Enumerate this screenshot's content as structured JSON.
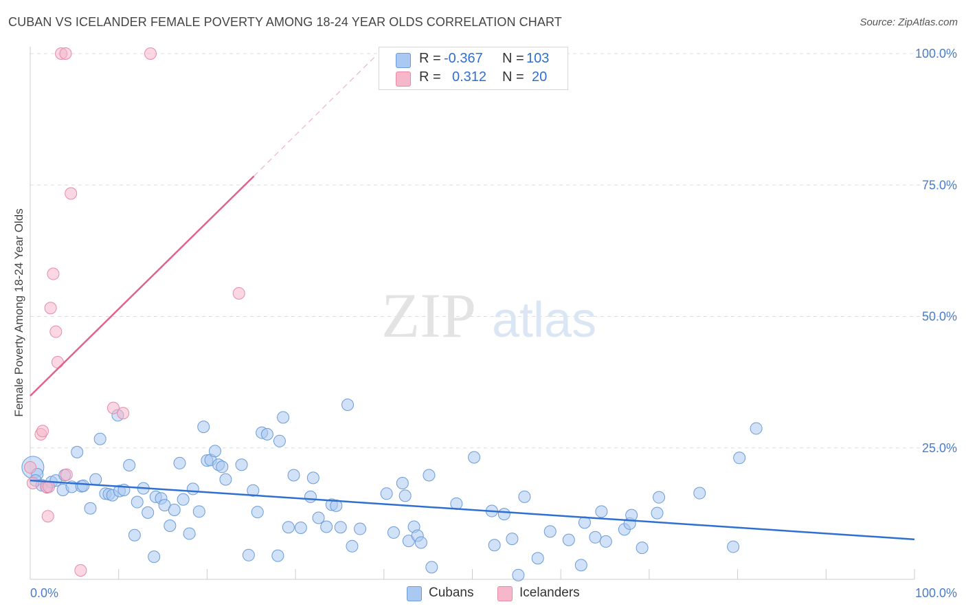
{
  "header": {
    "title": "CUBAN VS ICELANDER FEMALE POVERTY AMONG 18-24 YEAR OLDS CORRELATION CHART",
    "source": "Source: ZipAtlas.com"
  },
  "watermark": {
    "zip": "ZIP",
    "atlas": "atlas"
  },
  "legend": {
    "rows": [
      {
        "r_label": "R =",
        "r_value": "-0.367",
        "n_label": "N =",
        "n_value": "103",
        "color": "#a9c8f2"
      },
      {
        "r_label": "R =",
        "r_value": "0.312",
        "n_label": "N =",
        "n_value": "20",
        "color": "#f6b7ca"
      }
    ]
  },
  "bottom_legend": [
    {
      "label": "Cubans",
      "color": "#a9c8f2"
    },
    {
      "label": "Icelanders",
      "color": "#f6b7ca"
    }
  ],
  "colors": {
    "cubans_fill": "#a9c8f2",
    "cubans_stroke": "#6a9bd8",
    "cubans_line": "#2e6fd0",
    "icelanders_fill": "#f6b7ca",
    "icelanders_stroke": "#e88aa7",
    "icelanders_line": "#e0628b",
    "tick_text": "#4a7cc9",
    "grid": "#dddddd"
  },
  "chart_data": {
    "type": "scatter",
    "title": "CUBAN VS ICELANDER FEMALE POVERTY AMONG 18-24 YEAR OLDS CORRELATION CHART",
    "xlabel": "",
    "ylabel": "Female Poverty Among 18-24 Year Olds",
    "xlim": [
      0,
      100
    ],
    "ylim": [
      0,
      100
    ],
    "x_tick_labels": [
      "0.0%",
      "100.0%"
    ],
    "y_ticks": [
      25,
      50,
      75,
      100
    ],
    "y_tick_labels": [
      "25.0%",
      "50.0%",
      "75.0%",
      "100.0%"
    ],
    "grid": true,
    "series": [
      {
        "name": "Cubans",
        "r": -0.367,
        "n": 103,
        "trend": {
          "x0": 0,
          "y0": 18.8,
          "x1": 100,
          "y1": 7.6
        },
        "points": [
          [
            0.3,
            21.3
          ],
          [
            0.8,
            20.0
          ],
          [
            0.6,
            18.8
          ],
          [
            1.3,
            17.9
          ],
          [
            1.9,
            17.5
          ],
          [
            2.4,
            18.5
          ],
          [
            2.9,
            18.8
          ],
          [
            3.7,
            17.0
          ],
          [
            3.9,
            19.8
          ],
          [
            4.7,
            17.6
          ],
          [
            5.3,
            24.2
          ],
          [
            5.8,
            17.7
          ],
          [
            6.0,
            17.8
          ],
          [
            6.8,
            13.5
          ],
          [
            7.4,
            19.0
          ],
          [
            7.9,
            26.7
          ],
          [
            8.5,
            16.3
          ],
          [
            8.9,
            16.2
          ],
          [
            9.3,
            16.0
          ],
          [
            9.9,
            31.2
          ],
          [
            10.1,
            16.8
          ],
          [
            10.6,
            17.0
          ],
          [
            11.2,
            21.7
          ],
          [
            11.8,
            8.4
          ],
          [
            12.1,
            14.7
          ],
          [
            12.8,
            17.3
          ],
          [
            13.3,
            12.7
          ],
          [
            14.0,
            4.3
          ],
          [
            14.2,
            15.7
          ],
          [
            14.8,
            15.4
          ],
          [
            15.2,
            14.1
          ],
          [
            15.8,
            10.2
          ],
          [
            16.3,
            13.2
          ],
          [
            16.9,
            22.1
          ],
          [
            17.3,
            15.2
          ],
          [
            18.0,
            8.7
          ],
          [
            18.4,
            17.2
          ],
          [
            19.1,
            12.9
          ],
          [
            19.6,
            29.0
          ],
          [
            20.0,
            22.6
          ],
          [
            20.4,
            22.7
          ],
          [
            20.9,
            24.4
          ],
          [
            21.3,
            21.8
          ],
          [
            21.7,
            21.4
          ],
          [
            22.1,
            19.0
          ],
          [
            23.9,
            21.8
          ],
          [
            24.7,
            4.6
          ],
          [
            25.2,
            16.9
          ],
          [
            25.7,
            12.8
          ],
          [
            26.2,
            27.9
          ],
          [
            26.8,
            27.6
          ],
          [
            28.0,
            4.5
          ],
          [
            28.2,
            26.3
          ],
          [
            28.6,
            30.8
          ],
          [
            29.2,
            9.9
          ],
          [
            29.8,
            19.8
          ],
          [
            30.6,
            9.8
          ],
          [
            31.7,
            15.7
          ],
          [
            32.0,
            19.3
          ],
          [
            32.6,
            11.7
          ],
          [
            33.5,
            10.0
          ],
          [
            34.1,
            14.2
          ],
          [
            34.6,
            14.0
          ],
          [
            35.1,
            9.9
          ],
          [
            35.9,
            33.2
          ],
          [
            36.4,
            6.3
          ],
          [
            37.3,
            9.6
          ],
          [
            40.3,
            16.3
          ],
          [
            41.1,
            8.9
          ],
          [
            42.1,
            18.3
          ],
          [
            42.4,
            15.9
          ],
          [
            42.8,
            7.3
          ],
          [
            43.4,
            10.0
          ],
          [
            43.8,
            8.3
          ],
          [
            44.2,
            7.0
          ],
          [
            45.1,
            19.8
          ],
          [
            45.4,
            2.3
          ],
          [
            48.2,
            14.4
          ],
          [
            50.2,
            23.2
          ],
          [
            52.2,
            13.0
          ],
          [
            52.5,
            6.5
          ],
          [
            53.6,
            12.4
          ],
          [
            54.5,
            7.7
          ],
          [
            55.2,
            0.8
          ],
          [
            55.9,
            15.7
          ],
          [
            57.4,
            4.0
          ],
          [
            58.8,
            9.1
          ],
          [
            60.9,
            7.5
          ],
          [
            62.3,
            2.7
          ],
          [
            62.7,
            10.8
          ],
          [
            63.9,
            8.0
          ],
          [
            64.6,
            12.9
          ],
          [
            65.1,
            7.2
          ],
          [
            67.2,
            9.5
          ],
          [
            67.8,
            10.6
          ],
          [
            68.0,
            12.2
          ],
          [
            69.2,
            6.0
          ],
          [
            70.9,
            12.6
          ],
          [
            71.1,
            15.6
          ],
          [
            75.7,
            16.4
          ],
          [
            79.5,
            6.2
          ],
          [
            80.2,
            23.1
          ],
          [
            82.1,
            28.7
          ]
        ]
      },
      {
        "name": "Icelanders",
        "r": 0.312,
        "n": 20,
        "trend": {
          "x0": 0,
          "y0": 34.9,
          "x1": 25.3,
          "y1": 76.7,
          "x_ext": 39.1,
          "y_ext": 99.6
        },
        "points": [
          [
            0.0,
            21.3
          ],
          [
            0.3,
            18.3
          ],
          [
            1.2,
            27.6
          ],
          [
            1.4,
            28.2
          ],
          [
            1.8,
            17.6
          ],
          [
            2.0,
            12.0
          ],
          [
            2.1,
            17.6
          ],
          [
            2.3,
            51.6
          ],
          [
            2.6,
            58.1
          ],
          [
            2.9,
            47.1
          ],
          [
            3.1,
            41.3
          ],
          [
            3.5,
            100.0
          ],
          [
            4.0,
            100.0
          ],
          [
            4.1,
            19.9
          ],
          [
            4.6,
            73.4
          ],
          [
            5.7,
            1.7
          ],
          [
            9.4,
            32.6
          ],
          [
            10.5,
            31.6
          ],
          [
            13.6,
            100.0
          ],
          [
            23.6,
            54.4
          ]
        ]
      }
    ]
  }
}
